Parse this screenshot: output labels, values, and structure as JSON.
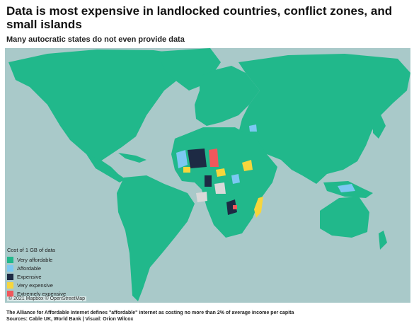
{
  "header": {
    "title": "Data is most expensive in landlocked countries, conflict zones, and small islands",
    "subtitle": "Many autocratic states do not even provide data"
  },
  "map": {
    "attribution": "© 2021 Mapbox © OpenStreetMap",
    "colors": {
      "ocean": "#a9c9c9",
      "very_affordable": "#21b88b",
      "affordable": "#7cc8f2",
      "expensive": "#1d2a44",
      "very_expensive": "#f6d63c",
      "extremely_expensive": "#f0585c",
      "no_data": "#d9d9d9"
    }
  },
  "legend": {
    "title": "Cost of 1 GB of data",
    "items": [
      {
        "label": "Very affordable",
        "color": "#21b88b"
      },
      {
        "label": "Affordable",
        "color": "#7cc8f2"
      },
      {
        "label": "Expensive",
        "color": "#1d2a44"
      },
      {
        "label": "Very expensive",
        "color": "#f6d63c"
      },
      {
        "label": "Extremely expensive",
        "color": "#f0585c"
      }
    ]
  },
  "footer": {
    "note": "The Alliance for Affordable Internet defines \"affordable\" internet as costing no more than 2% of average income per capita",
    "sources": "Sources: Cable UK, World Bank | Visual: Orion Wilcox"
  }
}
